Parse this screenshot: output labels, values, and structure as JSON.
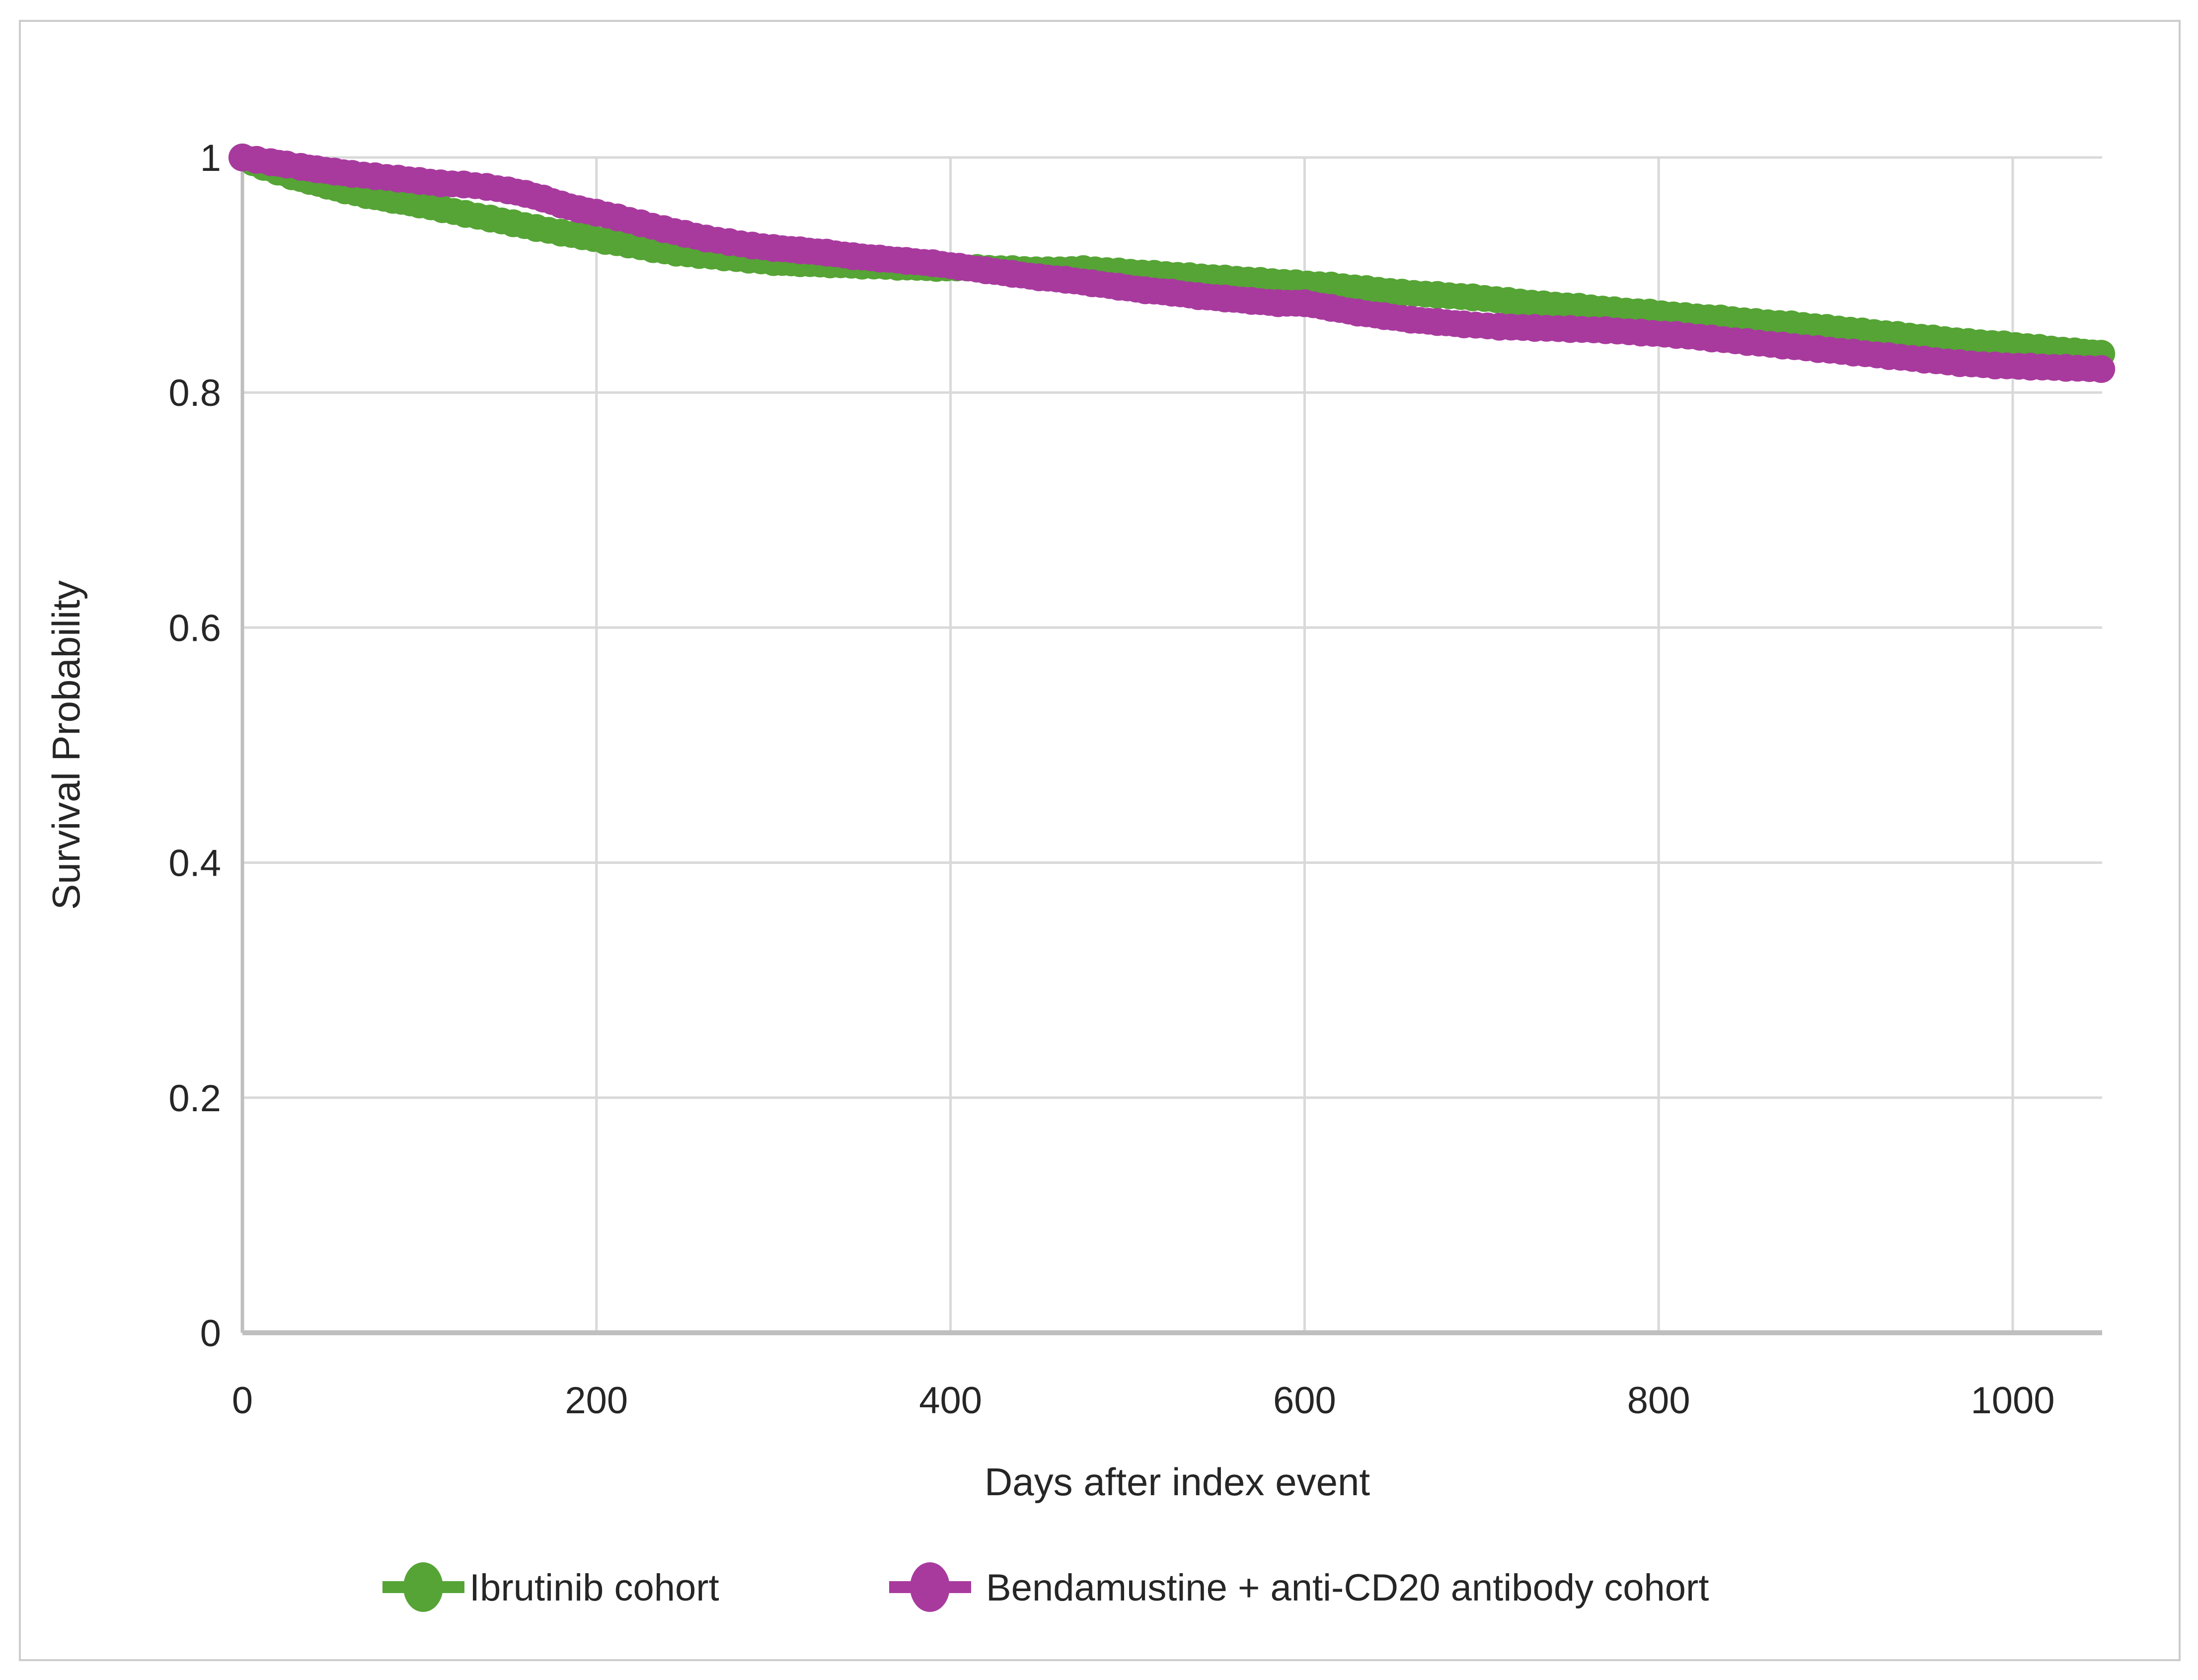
{
  "figure": {
    "background_color": "#FFFFFF",
    "border_color": "#CCCCCC",
    "gridline_color": "#D9D9D9",
    "axis_line_color": "#BFBFBF",
    "text_color": "#262626"
  },
  "chart_data": {
    "type": "line",
    "title": "",
    "xlabel": "Days after index event",
    "ylabel": "Survival  Probability",
    "xlim": [
      0,
      1050
    ],
    "ylim": [
      0,
      1
    ],
    "grid": true,
    "legend_position": "bottom",
    "x_ticks": [
      0,
      200,
      400,
      600,
      800,
      1000
    ],
    "x_tick_labels": [
      "0",
      "200",
      "400",
      "600",
      "800",
      "1000"
    ],
    "y_ticks": [
      1,
      0.8,
      0.6,
      0.4,
      0.2,
      0
    ],
    "y_tick_labels": [
      "1",
      "0.8",
      "0.6",
      "0.4",
      "0.2",
      "0"
    ],
    "series": [
      {
        "name": "Ibrutinib cohort",
        "color": "#55A435",
        "marker": "circle",
        "points": [
          [
            0,
            1.0
          ],
          [
            6,
            0.996
          ],
          [
            12,
            0.992
          ],
          [
            20,
            0.988
          ],
          [
            28,
            0.984
          ],
          [
            38,
            0.98
          ],
          [
            48,
            0.976
          ],
          [
            58,
            0.972
          ],
          [
            70,
            0.968
          ],
          [
            85,
            0.964
          ],
          [
            100,
            0.96
          ],
          [
            113,
            0.956
          ],
          [
            126,
            0.952
          ],
          [
            140,
            0.948
          ],
          [
            153,
            0.944
          ],
          [
            166,
            0.94
          ],
          [
            180,
            0.936
          ],
          [
            192,
            0.933
          ],
          [
            205,
            0.929
          ],
          [
            218,
            0.926
          ],
          [
            232,
            0.922
          ],
          [
            245,
            0.919
          ],
          [
            258,
            0.917
          ],
          [
            272,
            0.915
          ],
          [
            286,
            0.913
          ],
          [
            300,
            0.911
          ],
          [
            315,
            0.91
          ],
          [
            332,
            0.909
          ],
          [
            350,
            0.908
          ],
          [
            370,
            0.907
          ],
          [
            392,
            0.906
          ],
          [
            415,
            0.906
          ],
          [
            435,
            0.905
          ],
          [
            455,
            0.904
          ],
          [
            475,
            0.905
          ],
          [
            495,
            0.903
          ],
          [
            515,
            0.901
          ],
          [
            535,
            0.899
          ],
          [
            555,
            0.897
          ],
          [
            575,
            0.895
          ],
          [
            595,
            0.893
          ],
          [
            615,
            0.891
          ],
          [
            635,
            0.888
          ],
          [
            655,
            0.885
          ],
          [
            675,
            0.883
          ],
          [
            695,
            0.881
          ],
          [
            715,
            0.878
          ],
          [
            735,
            0.875
          ],
          [
            755,
            0.873
          ],
          [
            775,
            0.87
          ],
          [
            795,
            0.868
          ],
          [
            815,
            0.865
          ],
          [
            835,
            0.863
          ],
          [
            855,
            0.86
          ],
          [
            875,
            0.858
          ],
          [
            895,
            0.855
          ],
          [
            915,
            0.852
          ],
          [
            935,
            0.849
          ],
          [
            955,
            0.846
          ],
          [
            975,
            0.843
          ],
          [
            995,
            0.841
          ],
          [
            1015,
            0.838
          ],
          [
            1035,
            0.835
          ],
          [
            1050,
            0.833
          ]
        ]
      },
      {
        "name": "Bendamustine + anti-CD20 antibody cohort",
        "color": "#A83A9E",
        "marker": "circle",
        "points": [
          [
            0,
            1.0
          ],
          [
            8,
            0.998
          ],
          [
            16,
            0.996
          ],
          [
            25,
            0.994
          ],
          [
            33,
            0.992
          ],
          [
            42,
            0.99
          ],
          [
            52,
            0.988
          ],
          [
            62,
            0.986
          ],
          [
            75,
            0.984
          ],
          [
            88,
            0.982
          ],
          [
            100,
            0.98
          ],
          [
            112,
            0.978
          ],
          [
            125,
            0.977
          ],
          [
            138,
            0.975
          ],
          [
            150,
            0.972
          ],
          [
            160,
            0.969
          ],
          [
            170,
            0.965
          ],
          [
            180,
            0.96
          ],
          [
            190,
            0.956
          ],
          [
            200,
            0.953
          ],
          [
            212,
            0.949
          ],
          [
            225,
            0.944
          ],
          [
            238,
            0.939
          ],
          [
            250,
            0.935
          ],
          [
            262,
            0.931
          ],
          [
            275,
            0.928
          ],
          [
            288,
            0.925
          ],
          [
            300,
            0.923
          ],
          [
            315,
            0.921
          ],
          [
            330,
            0.919
          ],
          [
            345,
            0.916
          ],
          [
            360,
            0.914
          ],
          [
            375,
            0.912
          ],
          [
            390,
            0.91
          ],
          [
            405,
            0.907
          ],
          [
            420,
            0.904
          ],
          [
            435,
            0.901
          ],
          [
            450,
            0.898
          ],
          [
            465,
            0.896
          ],
          [
            480,
            0.893
          ],
          [
            495,
            0.89
          ],
          [
            510,
            0.887
          ],
          [
            525,
            0.885
          ],
          [
            540,
            0.882
          ],
          [
            555,
            0.88
          ],
          [
            570,
            0.878
          ],
          [
            585,
            0.876
          ],
          [
            600,
            0.876
          ],
          [
            615,
            0.872
          ],
          [
            630,
            0.868
          ],
          [
            645,
            0.865
          ],
          [
            660,
            0.862
          ],
          [
            675,
            0.86
          ],
          [
            690,
            0.858
          ],
          [
            710,
            0.856
          ],
          [
            730,
            0.855
          ],
          [
            750,
            0.854
          ],
          [
            770,
            0.853
          ],
          [
            790,
            0.851
          ],
          [
            810,
            0.849
          ],
          [
            830,
            0.846
          ],
          [
            850,
            0.843
          ],
          [
            870,
            0.84
          ],
          [
            890,
            0.837
          ],
          [
            910,
            0.834
          ],
          [
            930,
            0.831
          ],
          [
            950,
            0.828
          ],
          [
            970,
            0.825
          ],
          [
            990,
            0.823
          ],
          [
            1010,
            0.822
          ],
          [
            1030,
            0.821
          ],
          [
            1050,
            0.82
          ]
        ]
      }
    ]
  },
  "legend": {
    "items": [
      {
        "label": "Ibrutinib cohort",
        "color": "#55A435"
      },
      {
        "label": "Bendamustine + anti-CD20 antibody cohort",
        "color": "#A83A9E"
      }
    ]
  }
}
